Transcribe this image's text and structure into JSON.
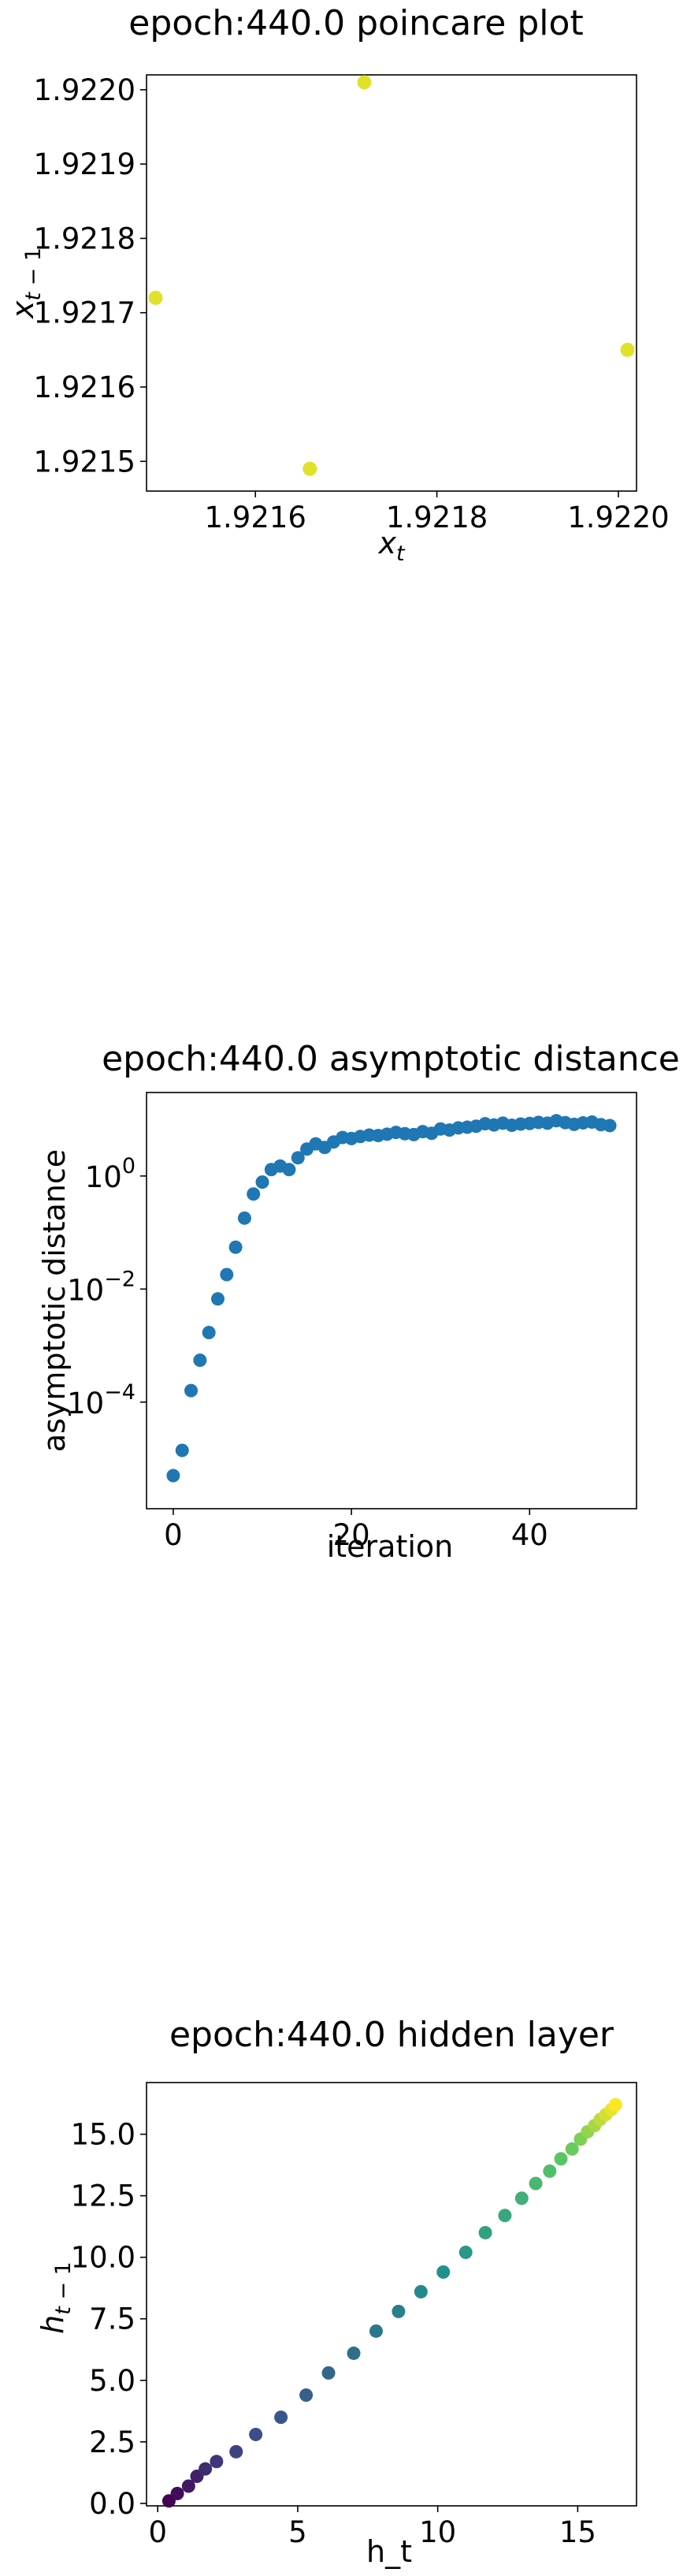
{
  "chart_data": [
    {
      "type": "scatter",
      "title": "epoch:440.0 poincare plot",
      "xlabel": "x_t",
      "ylabel": "x_{t-1}",
      "xlim": [
        1.92148,
        1.92202
      ],
      "ylim": [
        1.92146,
        1.92202
      ],
      "xticks": [
        1.9216,
        1.9218,
        1.922
      ],
      "xtick_labels": [
        "1.9216",
        "1.9218",
        "1.9220"
      ],
      "yticks": [
        1.9215,
        1.9216,
        1.9217,
        1.9218,
        1.9219,
        1.922
      ],
      "ytick_labels": [
        "1.9215",
        "1.9216",
        "1.9217",
        "1.9218",
        "1.9219",
        "1.9220"
      ],
      "grid": false,
      "colors": [
        "#e0e22a"
      ],
      "points": [
        {
          "x": 1.92149,
          "y": 1.92172
        },
        {
          "x": 1.92166,
          "y": 1.92149
        },
        {
          "x": 1.92172,
          "y": 1.92201
        },
        {
          "x": 1.92201,
          "y": 1.92165
        }
      ]
    },
    {
      "type": "scatter",
      "title": "epoch:440.0 asymptotic distance",
      "xlabel": "iteration",
      "ylabel": "asymptotic distance",
      "yscale": "log",
      "xlim": [
        -3,
        52
      ],
      "ylim": [
        1.3e-06,
        30
      ],
      "xticks": [
        0,
        20,
        40
      ],
      "xtick_labels": [
        "0",
        "20",
        "40"
      ],
      "yticks": [
        0.0001,
        0.01,
        1
      ],
      "ytick_labels": [
        {
          "base": "10",
          "exp": "−4"
        },
        {
          "base": "10",
          "exp": "−2"
        },
        {
          "base": "10",
          "exp": "0"
        }
      ],
      "grid": false,
      "colors": [
        "#1f77b4"
      ],
      "x": [
        0,
        1,
        2,
        3,
        4,
        5,
        6,
        7,
        8,
        9,
        10,
        11,
        12,
        13,
        14,
        15,
        16,
        17,
        18,
        19,
        20,
        21,
        22,
        23,
        24,
        25,
        26,
        27,
        28,
        29,
        30,
        31,
        32,
        33,
        34,
        35,
        36,
        37,
        38,
        39,
        40,
        41,
        42,
        43,
        44,
        45,
        46,
        47,
        48,
        49
      ],
      "y": [
        5e-06,
        1.4e-05,
        0.00016,
        0.00055,
        0.0017,
        0.0067,
        0.018,
        0.055,
        0.18,
        0.48,
        0.78,
        1.3,
        1.5,
        1.3,
        2.1,
        3.0,
        3.7,
        3.2,
        4.0,
        4.8,
        4.6,
        5.0,
        5.3,
        5.2,
        5.5,
        5.9,
        5.6,
        5.4,
        6.1,
        5.7,
        6.8,
        6.5,
        7.1,
        7.3,
        7.6,
        8.4,
        8.0,
        8.6,
        7.9,
        8.3,
        8.5,
        8.9,
        8.6,
        9.5,
        8.8,
        8.2,
        8.7,
        9.0,
        8.1,
        7.8
      ]
    },
    {
      "type": "scatter",
      "title": "epoch:440.0 hidden layer",
      "xlabel": "h_t",
      "ylabel": "h_{t-1}",
      "xlim": [
        -0.4,
        17.1
      ],
      "ylim": [
        -0.1,
        17.1
      ],
      "xticks": [
        0,
        5,
        10,
        15
      ],
      "xtick_labels": [
        "0",
        "5",
        "10",
        "15"
      ],
      "yticks": [
        0,
        2.5,
        5,
        7.5,
        10,
        12.5,
        15
      ],
      "ytick_labels": [
        "0.0",
        "2.5",
        "5.0",
        "7.5",
        "10.0",
        "12.5",
        "15.0"
      ],
      "grid": false,
      "colormap": "viridis",
      "colors": [
        "#440154",
        "#3b528b",
        "#21918c",
        "#5ec962",
        "#fde725"
      ],
      "x": [
        0.4,
        0.7,
        1.1,
        1.4,
        1.7,
        2.1,
        2.8,
        3.5,
        4.4,
        5.3,
        6.1,
        7.0,
        7.8,
        8.6,
        9.4,
        10.2,
        11.0,
        11.7,
        12.4,
        13.0,
        13.5,
        14.0,
        14.4,
        14.8,
        15.1,
        15.35,
        15.6,
        15.8,
        16.0,
        16.2,
        16.35
      ],
      "y": [
        0.1,
        0.4,
        0.7,
        1.1,
        1.4,
        1.7,
        2.1,
        2.8,
        3.5,
        4.4,
        5.3,
        6.1,
        7.0,
        7.8,
        8.6,
        9.4,
        10.2,
        11.0,
        11.7,
        12.4,
        13.0,
        13.5,
        14.0,
        14.4,
        14.8,
        15.1,
        15.35,
        15.6,
        15.8,
        16.0,
        16.2
      ]
    }
  ]
}
